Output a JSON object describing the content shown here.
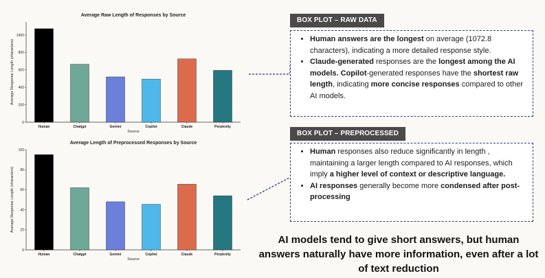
{
  "chart_data": [
    {
      "type": "bar",
      "title": "Average Raw Length of Responses by Source",
      "xlabel": "Source",
      "ylabel": "Average Response Length (characters)",
      "categories": [
        "Human",
        "Chatgpt",
        "Gemini",
        "Copilot",
        "Claude",
        "Perplexity"
      ],
      "values": [
        1072.8,
        665,
        520,
        495,
        727,
        595
      ],
      "colors": [
        "#000000",
        "#6fa898",
        "#6b7fdb",
        "#4fb8ea",
        "#dc6b4d",
        "#25777f"
      ],
      "ylim": [
        0,
        1150
      ],
      "yticks": [
        "0",
        "200",
        "400",
        "600",
        "800",
        "1000"
      ],
      "ytick_values": [
        0,
        200,
        400,
        600,
        800,
        1000
      ]
    },
    {
      "type": "bar",
      "title": "Average Length of Preprocessed Responses by Source",
      "xlabel": "Source",
      "ylabel": "Average Response Length (characters)",
      "categories": [
        "Human",
        "Chatgpt",
        "Gemini",
        "Copilot",
        "Claude",
        "Perplexity"
      ],
      "values": [
        95,
        62,
        48,
        45.5,
        65.5,
        54
      ],
      "colors": [
        "#000000",
        "#6fa898",
        "#6b7fdb",
        "#4fb8ea",
        "#dc6b4d",
        "#25777f"
      ],
      "ylim": [
        0,
        100
      ],
      "yticks": [
        "0",
        "20",
        "40",
        "60",
        "80",
        "100"
      ],
      "ytick_values": [
        0,
        20,
        40,
        60,
        80,
        100
      ]
    }
  ],
  "panels": {
    "raw": {
      "header": "BOX PLOT – RAW DATA",
      "b1": {
        "bold1": "Human answers are the longest",
        "text1": " on average (1072.8 characters), indicating a more detailed response style."
      },
      "b2": {
        "bold1": "Claude-generated",
        "text1": " responses are the ",
        "bold2": "longest among the AI models. Copilot",
        "text2": "-generated responses have the ",
        "bold3": "shortest raw length",
        "text3": ", indicating ",
        "bold4": "more concise responses",
        "text4": " compared to other AI models."
      }
    },
    "pre": {
      "header": "BOX PLOT – PREPROCESSED",
      "b1": {
        "bold1": "Human",
        "text1": " responses also reduce significantly in length , maintaining a larger length compared to AI responses, which  imply ",
        "bold2": "a higher level of context or descriptive language."
      },
      "b2": {
        "bold1": "AI responses",
        "text1": " generally become more ",
        "bold2": "condensed after post-processing"
      }
    }
  },
  "conclusion": "AI models tend to give short answers, but human answers naturally have more information, even after a lot of text reduction"
}
